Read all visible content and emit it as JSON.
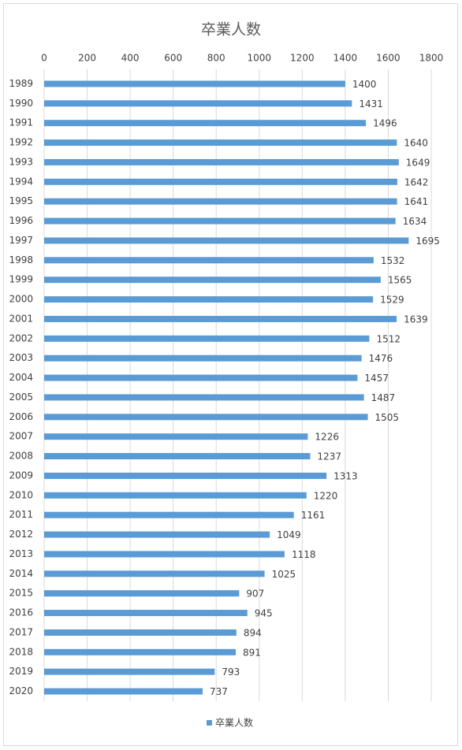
{
  "chart_data": {
    "type": "bar",
    "orientation": "horizontal",
    "title": "卒業人数",
    "categories": [
      "1989",
      "1990",
      "1991",
      "1992",
      "1993",
      "1994",
      "1995",
      "1996",
      "1997",
      "1998",
      "1999",
      "2000",
      "2001",
      "2002",
      "2003",
      "2004",
      "2005",
      "2006",
      "2007",
      "2008",
      "2009",
      "2010",
      "2011",
      "2012",
      "2013",
      "2014",
      "2015",
      "2016",
      "2017",
      "2018",
      "2019",
      "2020"
    ],
    "series": [
      {
        "name": "卒業人数",
        "color": "#5b9bd5",
        "values": [
          1400,
          1431,
          1496,
          1640,
          1649,
          1642,
          1641,
          1634,
          1695,
          1532,
          1565,
          1529,
          1639,
          1512,
          1476,
          1457,
          1487,
          1505,
          1226,
          1237,
          1313,
          1220,
          1161,
          1049,
          1118,
          1025,
          907,
          945,
          894,
          891,
          793,
          737
        ]
      }
    ],
    "xlim": [
      0,
      1800
    ],
    "xticks": [
      0,
      200,
      400,
      600,
      800,
      1000,
      1200,
      1400,
      1600,
      1800
    ],
    "grid": true,
    "legend": "bottom"
  }
}
